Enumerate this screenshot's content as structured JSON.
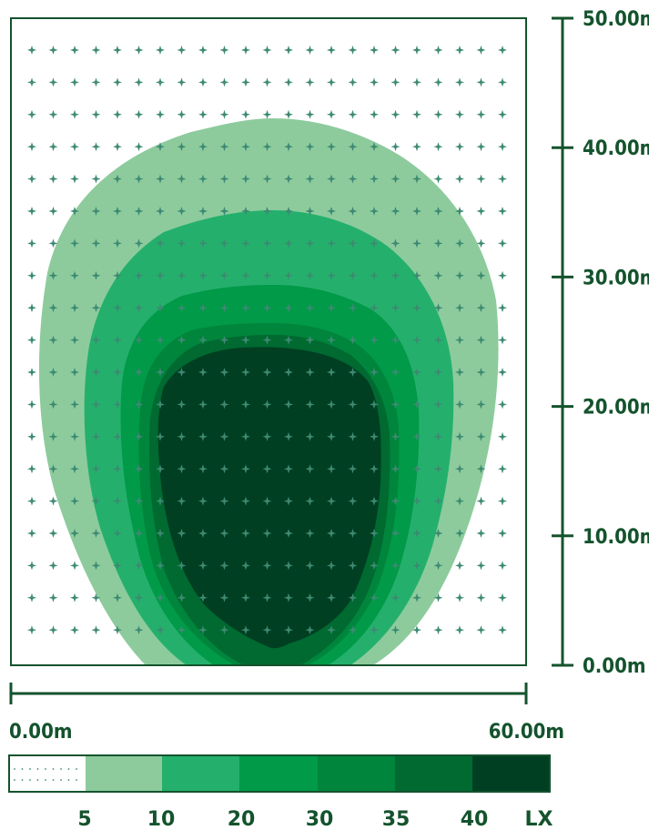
{
  "diagram": {
    "colors": {
      "line": "#14532d",
      "grid_marker": "#3d8a72",
      "band_5_10": "#8dcb9d",
      "band_10_20": "#24b06c",
      "band_20_30": "#009a48",
      "band_30_35": "#00853c",
      "band_35_40": "#006a31",
      "band_40_plus": "#003f22"
    },
    "y_axis": {
      "ticks": [
        "0.00m",
        "10.00m",
        "20.00m",
        "30.00m",
        "40.00m",
        "50.00m"
      ],
      "values": [
        0,
        10,
        20,
        30,
        40,
        50
      ]
    },
    "x_axis": {
      "min_label": "0.00m",
      "max_label": "60.00m",
      "range": [
        0,
        60
      ]
    },
    "legend": {
      "thresholds": [
        "5",
        "10",
        "20",
        "30",
        "35",
        "40"
      ],
      "unit": "LX"
    },
    "grid_marker_icon": "sparkle-icon"
  }
}
